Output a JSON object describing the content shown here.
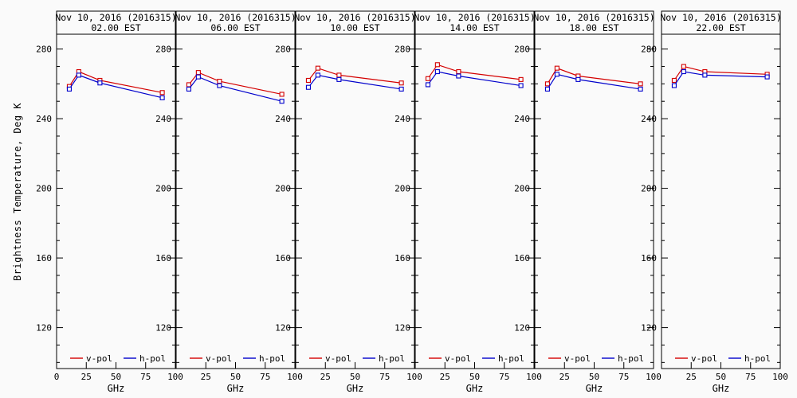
{
  "figure": {
    "y_axis_label": "Brightness Temperature, Deg K",
    "x_axis_label": "GHz",
    "background": "#fafafa",
    "frame_color": "#000000",
    "text_color": "#000000"
  },
  "legend": {
    "position": "bottom-inside-each-panel",
    "items": [
      {
        "label": "v-pol",
        "color": "#d40000"
      },
      {
        "label": "h-pol",
        "color": "#0000cc"
      }
    ]
  },
  "chart_data": [
    {
      "type": "line",
      "title": "Nov 10, 2016 (2016315)",
      "subtitle": "02.00 EST",
      "xlabel": "GHz",
      "x": [
        10.7,
        18.7,
        36.5,
        89
      ],
      "xlim": [
        0,
        100
      ],
      "xticks": [
        0,
        25,
        50,
        75,
        100
      ],
      "x_tick_labels": [
        "0",
        "25",
        "50",
        "75",
        "100"
      ],
      "yticks": [
        120,
        160,
        200,
        240,
        280
      ],
      "y_minor_tick_step": 10,
      "ylim": [
        96,
        289
      ],
      "marker": "open-square",
      "series": [
        {
          "name": "v-pol",
          "color": "#d40000",
          "values": [
            258.5,
            267.0,
            262.0,
            255.0
          ]
        },
        {
          "name": "h-pol",
          "color": "#0000cc",
          "values": [
            257.0,
            265.0,
            260.5,
            252.0
          ]
        }
      ]
    },
    {
      "type": "line",
      "title": "Nov 10, 2016 (2016315)",
      "subtitle": "06.00 EST",
      "xlabel": "GHz",
      "x": [
        10.7,
        18.7,
        36.5,
        89
      ],
      "xlim": [
        0,
        100
      ],
      "xticks": [
        0,
        25,
        50,
        75,
        100
      ],
      "x_tick_labels": [
        "25",
        "50",
        "75",
        "100"
      ],
      "yticks": [
        120,
        160,
        200,
        240,
        280
      ],
      "y_minor_tick_step": 10,
      "ylim": [
        96,
        289
      ],
      "marker": "open-square",
      "series": [
        {
          "name": "v-pol",
          "color": "#d40000",
          "values": [
            259.5,
            266.5,
            261.5,
            254.0
          ]
        },
        {
          "name": "h-pol",
          "color": "#0000cc",
          "values": [
            257.0,
            264.0,
            259.0,
            250.0
          ]
        }
      ]
    },
    {
      "type": "line",
      "title": "Nov 10, 2016 (2016315)",
      "subtitle": "10.00 EST",
      "xlabel": "GHz",
      "x": [
        10.7,
        18.7,
        36.5,
        89
      ],
      "xlim": [
        0,
        100
      ],
      "xticks": [
        0,
        25,
        50,
        75,
        100
      ],
      "x_tick_labels": [
        "25",
        "50",
        "75",
        "100"
      ],
      "yticks": [
        120,
        160,
        200,
        240,
        280
      ],
      "y_minor_tick_step": 10,
      "ylim": [
        96,
        289
      ],
      "marker": "open-square",
      "series": [
        {
          "name": "v-pol",
          "color": "#d40000",
          "values": [
            262.0,
            269.0,
            265.0,
            260.5
          ]
        },
        {
          "name": "h-pol",
          "color": "#0000cc",
          "values": [
            258.0,
            265.0,
            262.5,
            257.0
          ]
        }
      ]
    },
    {
      "type": "line",
      "title": "Nov 10, 2016 (2016315)",
      "subtitle": "14.00 EST",
      "xlabel": "GHz",
      "x": [
        10.7,
        18.7,
        36.5,
        89
      ],
      "xlim": [
        0,
        100
      ],
      "xticks": [
        0,
        25,
        50,
        75,
        100
      ],
      "x_tick_labels": [
        "25",
        "50",
        "75",
        "100"
      ],
      "yticks": [
        120,
        160,
        200,
        240,
        280
      ],
      "y_minor_tick_step": 10,
      "ylim": [
        96,
        289
      ],
      "marker": "open-square",
      "series": [
        {
          "name": "v-pol",
          "color": "#d40000",
          "values": [
            263.0,
            271.0,
            267.0,
            262.5
          ]
        },
        {
          "name": "h-pol",
          "color": "#0000cc",
          "values": [
            259.5,
            267.0,
            264.5,
            259.0
          ]
        }
      ]
    },
    {
      "type": "line",
      "title": "Nov 10, 2016 (2016315)",
      "subtitle": "18.00 EST",
      "xlabel": "GHz",
      "x": [
        10.7,
        18.7,
        36.5,
        89
      ],
      "xlim": [
        0,
        100
      ],
      "xticks": [
        0,
        25,
        50,
        75,
        100
      ],
      "x_tick_labels": [
        "25",
        "50",
        "75",
        "100"
      ],
      "yticks": [
        120,
        160,
        200,
        240,
        280
      ],
      "y_minor_tick_step": 10,
      "ylim": [
        96,
        289
      ],
      "marker": "open-square",
      "series": [
        {
          "name": "v-pol",
          "color": "#d40000",
          "values": [
            260.0,
            269.0,
            264.5,
            260.0
          ]
        },
        {
          "name": "h-pol",
          "color": "#0000cc",
          "values": [
            257.0,
            265.5,
            262.5,
            257.0
          ]
        }
      ]
    },
    {
      "type": "line",
      "title": "Nov 10, 2016 (2016315)",
      "subtitle": "22.00 EST",
      "xlabel": "GHz",
      "x": [
        10.7,
        18.7,
        36.5,
        89
      ],
      "xlim": [
        0,
        100
      ],
      "xticks": [
        0,
        25,
        50,
        75,
        100
      ],
      "x_tick_labels": [
        "25",
        "50",
        "75",
        "100"
      ],
      "yticks": [
        120,
        160,
        200,
        240,
        280
      ],
      "y_minor_tick_step": 10,
      "ylim": [
        96,
        289
      ],
      "marker": "open-square",
      "series": [
        {
          "name": "v-pol",
          "color": "#d40000",
          "values": [
            262.0,
            270.0,
            267.0,
            265.5
          ]
        },
        {
          "name": "h-pol",
          "color": "#0000cc",
          "values": [
            259.0,
            267.0,
            265.0,
            264.0
          ]
        }
      ]
    }
  ]
}
